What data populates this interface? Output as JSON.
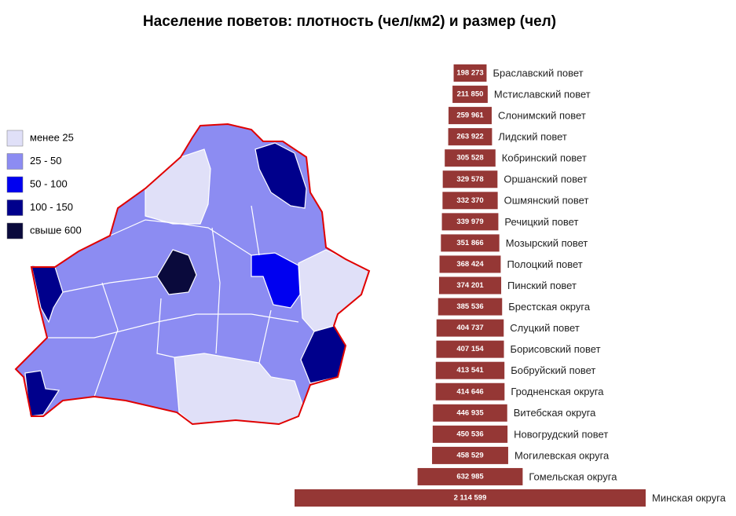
{
  "title": "Население поветов: плотность (чел/км2) и размер (чел)",
  "chart_data": [
    {
      "type": "choropleth",
      "classes": [
        {
          "name": "менее 25",
          "color": "#e0e0f8"
        },
        {
          "name": "25 - 50",
          "color": "#8c8cf2"
        },
        {
          "name": "50 - 100",
          "color": "#0000f0"
        },
        {
          "name": "100 - 150",
          "color": "#00008c"
        },
        {
          "name": "свыше 600",
          "color": "#0a0a3c"
        }
      ]
    },
    {
      "type": "funnel",
      "color": "#953735",
      "categories": [
        "Браславский повет",
        "Мстиславский повет",
        "Слонимский повет",
        "Лидский повет",
        "Кобринский повет",
        "Оршанский повет",
        "Ошмянский повет",
        "Речицкий повет",
        "Мозырский повет",
        "Полоцкий повет",
        "Пинский повет",
        "Брестская округа",
        "Слуцкий повет",
        "Борисовский повет",
        "Бобруйский повет",
        "Гродненская округа",
        "Витебская округа",
        "Новогрудский повет",
        "Могилевская округа",
        "Гомельская округа",
        "Минская округа"
      ],
      "values": [
        198273,
        211850,
        259961,
        263922,
        305528,
        329578,
        332370,
        339979,
        351866,
        368424,
        374201,
        385536,
        404737,
        407154,
        413541,
        414646,
        446935,
        450536,
        458529,
        632985,
        2114599
      ],
      "value_labels": [
        "198 273",
        "211 850",
        "259 961",
        "263 922",
        "305 528",
        "329 578",
        "332 370",
        "339 979",
        "351 866",
        "368 424",
        "374 201",
        "385 536",
        "404 737",
        "407 154",
        "413 541",
        "414 646",
        "446 935",
        "450 536",
        "458 529",
        "632 985",
        "2 114 599"
      ]
    }
  ]
}
